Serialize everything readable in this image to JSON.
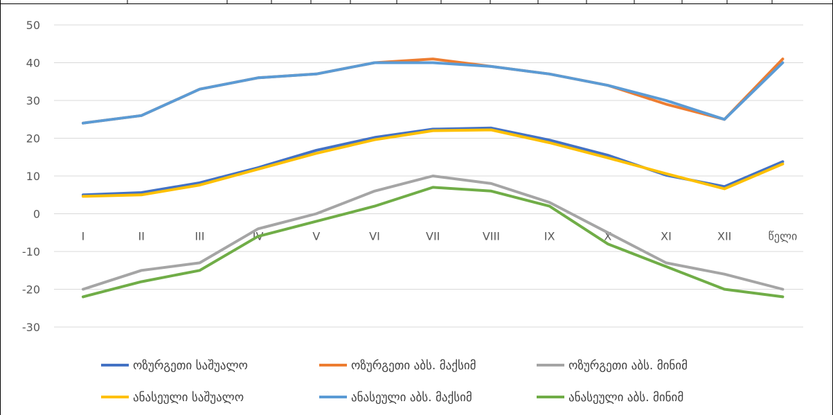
{
  "chart_data": {
    "type": "line",
    "categories": [
      "I",
      "II",
      "III",
      "IV",
      "V",
      "VI",
      "VII",
      "VIII",
      "IX",
      "X",
      "XI",
      "XII",
      "წელი"
    ],
    "ylim": [
      -30,
      50
    ],
    "yticks": [
      50,
      40,
      30,
      20,
      10,
      0,
      -10,
      -20,
      -30
    ],
    "grid": true,
    "legend_position": "bottom",
    "title": "",
    "xlabel": "",
    "ylabel": "",
    "series": [
      {
        "name": "ოზურგეთი საშუალო",
        "color": "#4472C4",
        "values": [
          5,
          5.6,
          8.2,
          12.2,
          16.8,
          20.2,
          22.4,
          22.7,
          19.5,
          15.5,
          10.2,
          7.2,
          13.8
        ]
      },
      {
        "name": "ოზურგეთი აბს. მაქსიმ",
        "color": "#ED7D31",
        "values": [
          24,
          26,
          33,
          36,
          37,
          40,
          41,
          39,
          37,
          34,
          29,
          25,
          41
        ]
      },
      {
        "name": "ოზურგეთი აბს. მინიმ",
        "color": "#A5A5A5",
        "values": [
          -20,
          -15,
          -13,
          -4,
          0,
          6,
          10,
          8,
          3,
          -5,
          -13,
          -16,
          -20
        ]
      },
      {
        "name": "ანასეული  საშუალო",
        "color": "#FFC000",
        "values": [
          4.6,
          5,
          7.6,
          11.8,
          16,
          19.6,
          22,
          22.2,
          18.8,
          14.8,
          10.6,
          6.6,
          13.2
        ]
      },
      {
        "name": "ანასეული აბს. მაქსიმ",
        "color": "#5B9BD5",
        "values": [
          24,
          26,
          33,
          36,
          37,
          40,
          40,
          39,
          37,
          34,
          30,
          25,
          40
        ]
      },
      {
        "name": "ანასეული აბს. მინიმ",
        "color": "#70AD47",
        "values": [
          -22,
          -18,
          -15,
          -6,
          -2,
          2,
          7,
          6,
          2,
          -8,
          -14,
          -20,
          -22
        ]
      }
    ]
  }
}
